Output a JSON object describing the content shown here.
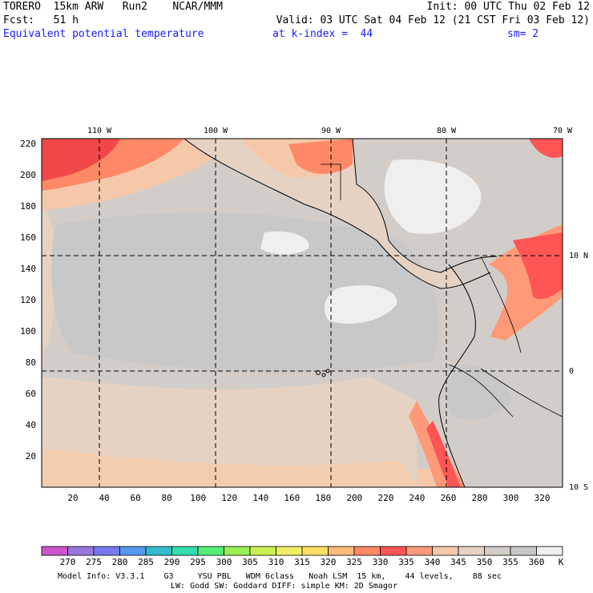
{
  "header": {
    "line1_left": "TORERO  15km ARW   Run2    NCAR/MMM",
    "line1_right": "Init: 00 UTC Thu 02 Feb 12",
    "line2_left": "Fcst:   51 h",
    "line2_right": "Valid: 03 UTC Sat 04 Feb 12 (21 CST Fri 03 Feb 12)",
    "line3_field": "Equivalent potential temperature",
    "line3_level": "at k-index =  44",
    "line3_sm": "sm= 2"
  },
  "map": {
    "lon_labels": [
      "110 W",
      "100 W",
      "90 W",
      "80 W",
      "70 W"
    ],
    "lat_labels": [
      "10 N",
      "0",
      "10 S"
    ],
    "y_ticks": [
      "20",
      "40",
      "60",
      "80",
      "100",
      "120",
      "140",
      "160",
      "180",
      "200",
      "220"
    ],
    "x_ticks": [
      "20",
      "40",
      "60",
      "80",
      "100",
      "120",
      "140",
      "160",
      "180",
      "200",
      "220",
      "240",
      "260",
      "280",
      "300",
      "320"
    ],
    "land_color": "#c8c8c8",
    "grid_style": "dashed"
  },
  "colorbar": {
    "levels": [
      "270",
      "275",
      "280",
      "285",
      "290",
      "295",
      "300",
      "305",
      "310",
      "315",
      "320",
      "325",
      "330",
      "335",
      "340",
      "345",
      "350",
      "355",
      "360"
    ],
    "unit": "K",
    "colors": [
      "#cc55cc",
      "#9977dd",
      "#7777ee",
      "#5599ee",
      "#33bbcc",
      "#33ddaa",
      "#55ee77",
      "#99ee55",
      "#ccee55",
      "#eeee66",
      "#ffdd66",
      "#ffbb77",
      "#ff8866",
      "#ff5555",
      "#ff9977",
      "#f5c8aa",
      "#e6d2c3",
      "#d2cdc8",
      "#c8c8c8",
      "#f0f0f0"
    ]
  },
  "footer": {
    "line1": "Model Info: V3.3.1    G3     YSU PBL   WDM 6class   Noah LSM  15 km,    44 levels,    88 sec",
    "line2": "LW: Godd SW: Goddard DIFF: simple KM: 2D Smagor"
  }
}
